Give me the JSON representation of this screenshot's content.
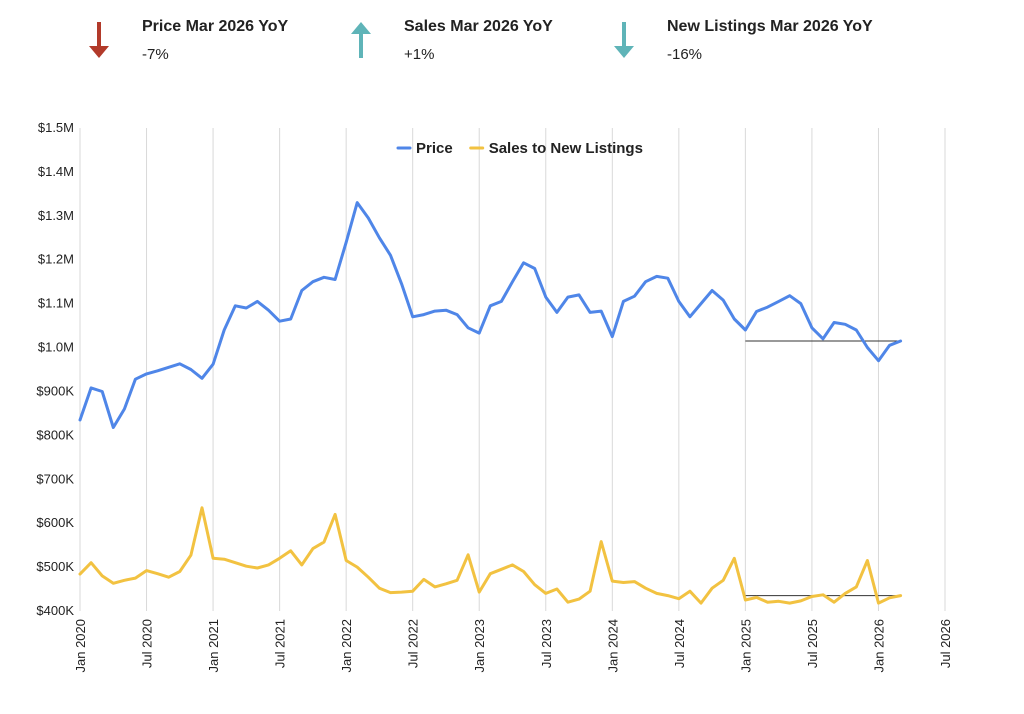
{
  "kpis": [
    {
      "title": "Price Mar 2026 YoY",
      "value": "-7%",
      "direction": "down",
      "color": "#b23a2a",
      "icon": "arrow-down-icon"
    },
    {
      "title": "Sales Mar 2026 YoY",
      "value": "+1%",
      "direction": "up",
      "color": "#5fb4b8",
      "icon": "arrow-up-icon"
    },
    {
      "title": "New Listings Mar 2026 YoY",
      "value": "-16%",
      "direction": "down",
      "color": "#5fb4b8",
      "icon": "arrow-down-icon"
    }
  ],
  "chart_data": {
    "type": "line",
    "title": "",
    "xlabel": "",
    "ylabel": "",
    "grid": "vertical",
    "legend_position": "top",
    "x_ticks": [
      "Jan 2020",
      "Jul 2020",
      "Jan 2021",
      "Jul 2021",
      "Jan 2022",
      "Jul 2022",
      "Jan 2023",
      "Jul 2023",
      "Jan 2024",
      "Jul 2024",
      "Jan 2025",
      "Jul 2025",
      "Jan 2026",
      "Jul 2026"
    ],
    "y_ticks": [
      "$400K",
      "$500K",
      "$600K",
      "$700K",
      "$800K",
      "$900K",
      "$1.0M",
      "$1.1M",
      "$1.2M",
      "$1.3M",
      "$1.4M",
      "$1.5M"
    ],
    "ylim": [
      400000,
      1500000
    ],
    "x_start": "2020-01",
    "x_end": "2026-07",
    "series": [
      {
        "name": "Price",
        "color": "#4f86e8",
        "points": [
          [
            "2020-01",
            835000
          ],
          [
            "2020-02",
            908000
          ],
          [
            "2020-03",
            900000
          ],
          [
            "2020-04",
            818000
          ],
          [
            "2020-05",
            860000
          ],
          [
            "2020-06",
            928000
          ],
          [
            "2020-07",
            940000
          ],
          [
            "2020-08",
            947000
          ],
          [
            "2020-09",
            955000
          ],
          [
            "2020-10",
            963000
          ],
          [
            "2020-11",
            950000
          ],
          [
            "2020-12",
            930000
          ],
          [
            "2021-01",
            962000
          ],
          [
            "2021-02",
            1040000
          ],
          [
            "2021-03",
            1095000
          ],
          [
            "2021-04",
            1090000
          ],
          [
            "2021-05",
            1105000
          ],
          [
            "2021-06",
            1085000
          ],
          [
            "2021-07",
            1060000
          ],
          [
            "2021-08",
            1065000
          ],
          [
            "2021-09",
            1130000
          ],
          [
            "2021-10",
            1150000
          ],
          [
            "2021-11",
            1160000
          ],
          [
            "2021-12",
            1155000
          ],
          [
            "2022-01",
            1240000
          ],
          [
            "2022-02",
            1330000
          ],
          [
            "2022-03",
            1295000
          ],
          [
            "2022-04",
            1250000
          ],
          [
            "2022-05",
            1210000
          ],
          [
            "2022-06",
            1145000
          ],
          [
            "2022-07",
            1070000
          ],
          [
            "2022-08",
            1075000
          ],
          [
            "2022-09",
            1083000
          ],
          [
            "2022-10",
            1085000
          ],
          [
            "2022-11",
            1075000
          ],
          [
            "2022-12",
            1045000
          ],
          [
            "2023-01",
            1033000
          ],
          [
            "2023-02",
            1095000
          ],
          [
            "2023-03",
            1105000
          ],
          [
            "2023-04",
            1150000
          ],
          [
            "2023-05",
            1193000
          ],
          [
            "2023-06",
            1180000
          ],
          [
            "2023-07",
            1115000
          ],
          [
            "2023-08",
            1080000
          ],
          [
            "2023-09",
            1115000
          ],
          [
            "2023-10",
            1120000
          ],
          [
            "2023-11",
            1080000
          ],
          [
            "2023-12",
            1083000
          ],
          [
            "2024-01",
            1025000
          ],
          [
            "2024-02",
            1105000
          ],
          [
            "2024-03",
            1117000
          ],
          [
            "2024-04",
            1150000
          ],
          [
            "2024-05",
            1162000
          ],
          [
            "2024-06",
            1158000
          ],
          [
            "2024-07",
            1105000
          ],
          [
            "2024-08",
            1070000
          ],
          [
            "2024-09",
            1100000
          ],
          [
            "2024-10",
            1130000
          ],
          [
            "2024-11",
            1108000
          ],
          [
            "2024-12",
            1065000
          ],
          [
            "2025-01",
            1040000
          ],
          [
            "2025-02",
            1082000
          ],
          [
            "2025-03",
            1092000
          ],
          [
            "2025-04",
            1105000
          ],
          [
            "2025-05",
            1118000
          ],
          [
            "2025-06",
            1100000
          ],
          [
            "2025-07",
            1045000
          ],
          [
            "2025-08",
            1020000
          ],
          [
            "2025-09",
            1057000
          ],
          [
            "2025-10",
            1053000
          ],
          [
            "2025-11",
            1040000
          ],
          [
            "2025-12",
            1000000
          ],
          [
            "2026-01",
            970000
          ],
          [
            "2026-02",
            1005000
          ],
          [
            "2026-03",
            1015000
          ]
        ]
      },
      {
        "name": "Sales to New Listings",
        "color": "#f2c241",
        "points": [
          [
            "2020-01",
            484000
          ],
          [
            "2020-02",
            510000
          ],
          [
            "2020-03",
            480000
          ],
          [
            "2020-04",
            463000
          ],
          [
            "2020-05",
            470000
          ],
          [
            "2020-06",
            475000
          ],
          [
            "2020-07",
            492000
          ],
          [
            "2020-08",
            485000
          ],
          [
            "2020-09",
            477000
          ],
          [
            "2020-10",
            490000
          ],
          [
            "2020-11",
            527000
          ],
          [
            "2020-12",
            635000
          ],
          [
            "2021-01",
            520000
          ],
          [
            "2021-02",
            518000
          ],
          [
            "2021-03",
            510000
          ],
          [
            "2021-04",
            502000
          ],
          [
            "2021-05",
            498000
          ],
          [
            "2021-06",
            505000
          ],
          [
            "2021-07",
            520000
          ],
          [
            "2021-08",
            537000
          ],
          [
            "2021-09",
            505000
          ],
          [
            "2021-10",
            542000
          ],
          [
            "2021-11",
            557000
          ],
          [
            "2021-12",
            620000
          ],
          [
            "2022-01",
            515000
          ],
          [
            "2022-02",
            500000
          ],
          [
            "2022-03",
            477000
          ],
          [
            "2022-04",
            452000
          ],
          [
            "2022-05",
            442000
          ],
          [
            "2022-06",
            443000
          ],
          [
            "2022-07",
            445000
          ],
          [
            "2022-08",
            472000
          ],
          [
            "2022-09",
            455000
          ],
          [
            "2022-10",
            462000
          ],
          [
            "2022-11",
            470000
          ],
          [
            "2022-12",
            528000
          ],
          [
            "2023-01",
            443000
          ],
          [
            "2023-02",
            485000
          ],
          [
            "2023-03",
            495000
          ],
          [
            "2023-04",
            505000
          ],
          [
            "2023-05",
            490000
          ],
          [
            "2023-06",
            460000
          ],
          [
            "2023-07",
            440000
          ],
          [
            "2023-08",
            450000
          ],
          [
            "2023-09",
            420000
          ],
          [
            "2023-10",
            427000
          ],
          [
            "2023-11",
            445000
          ],
          [
            "2023-12",
            558000
          ],
          [
            "2024-01",
            468000
          ],
          [
            "2024-02",
            465000
          ],
          [
            "2024-03",
            467000
          ],
          [
            "2024-04",
            452000
          ],
          [
            "2024-05",
            440000
          ],
          [
            "2024-06",
            435000
          ],
          [
            "2024-07",
            428000
          ],
          [
            "2024-08",
            445000
          ],
          [
            "2024-09",
            418000
          ],
          [
            "2024-10",
            452000
          ],
          [
            "2024-11",
            470000
          ],
          [
            "2024-12",
            520000
          ],
          [
            "2025-01",
            425000
          ],
          [
            "2025-02",
            431000
          ],
          [
            "2025-03",
            420000
          ],
          [
            "2025-04",
            422000
          ],
          [
            "2025-05",
            418000
          ],
          [
            "2025-06",
            423000
          ],
          [
            "2025-07",
            433000
          ],
          [
            "2025-08",
            437000
          ],
          [
            "2025-09",
            420000
          ],
          [
            "2025-10",
            440000
          ],
          [
            "2025-11",
            455000
          ],
          [
            "2025-12",
            515000
          ],
          [
            "2026-01",
            418000
          ],
          [
            "2026-02",
            430000
          ],
          [
            "2026-03",
            435000
          ]
        ]
      }
    ],
    "reference_lines": [
      {
        "series": "Price",
        "from": "2025-01",
        "to": "2026-03",
        "value": 1015000,
        "color": "#333333"
      },
      {
        "series": "Sales to New Listings",
        "from": "2025-01",
        "to": "2026-03",
        "value": 435000,
        "color": "#333333"
      }
    ]
  }
}
